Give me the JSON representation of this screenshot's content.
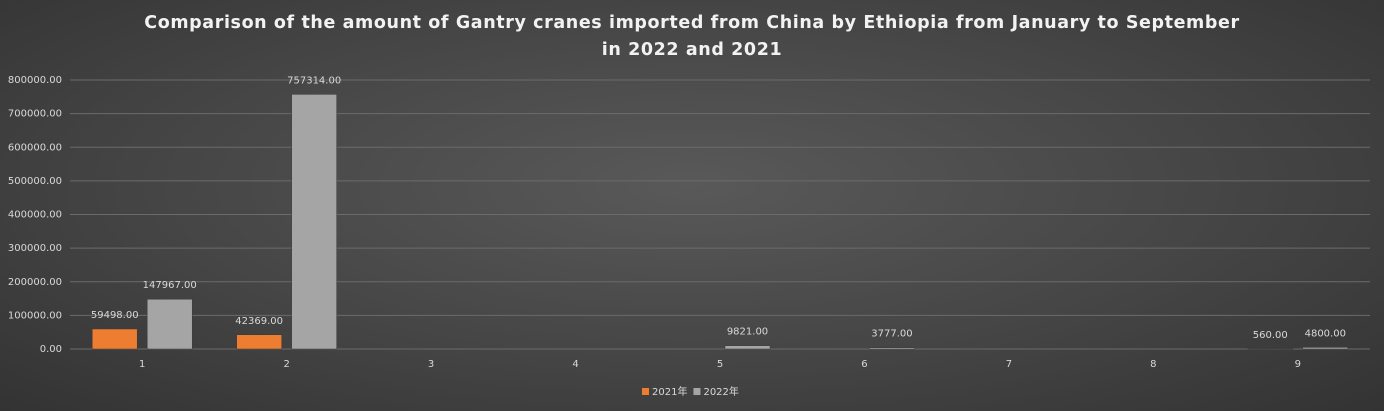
{
  "chart_data": {
    "type": "bar",
    "title": "Comparison of the amount of Gantry cranes imported from China by Ethiopia from January to September in 2022 and 2021",
    "categories": [
      "1",
      "2",
      "3",
      "4",
      "5",
      "6",
      "7",
      "8",
      "9"
    ],
    "series": [
      {
        "name": "2021年",
        "color": "#ed7d31",
        "values": [
          59498,
          42369,
          null,
          null,
          null,
          null,
          null,
          null,
          560
        ],
        "value_labels": [
          "59498.00",
          "42369.00",
          null,
          null,
          null,
          null,
          null,
          null,
          "560.00"
        ]
      },
      {
        "name": "2022年",
        "color": "#a5a5a5",
        "values": [
          147967,
          757314,
          null,
          null,
          9821,
          3777,
          null,
          null,
          4800
        ],
        "value_labels": [
          "147967.00",
          "757314.00",
          null,
          null,
          "9821.00",
          "3777.00",
          null,
          null,
          "4800.00"
        ]
      }
    ],
    "ylim": [
      0,
      800000
    ],
    "yticks": [
      {
        "value": 0,
        "label": "0.00"
      },
      {
        "value": 100000,
        "label": "100000.00"
      },
      {
        "value": 200000,
        "label": "200000.00"
      },
      {
        "value": 300000,
        "label": "300000.00"
      },
      {
        "value": 400000,
        "label": "400000.00"
      },
      {
        "value": 500000,
        "label": "500000.00"
      },
      {
        "value": 600000,
        "label": "600000.00"
      },
      {
        "value": 700000,
        "label": "700000.00"
      },
      {
        "value": 800000,
        "label": "800000.00"
      }
    ],
    "grid": true,
    "legend": "bottom"
  }
}
